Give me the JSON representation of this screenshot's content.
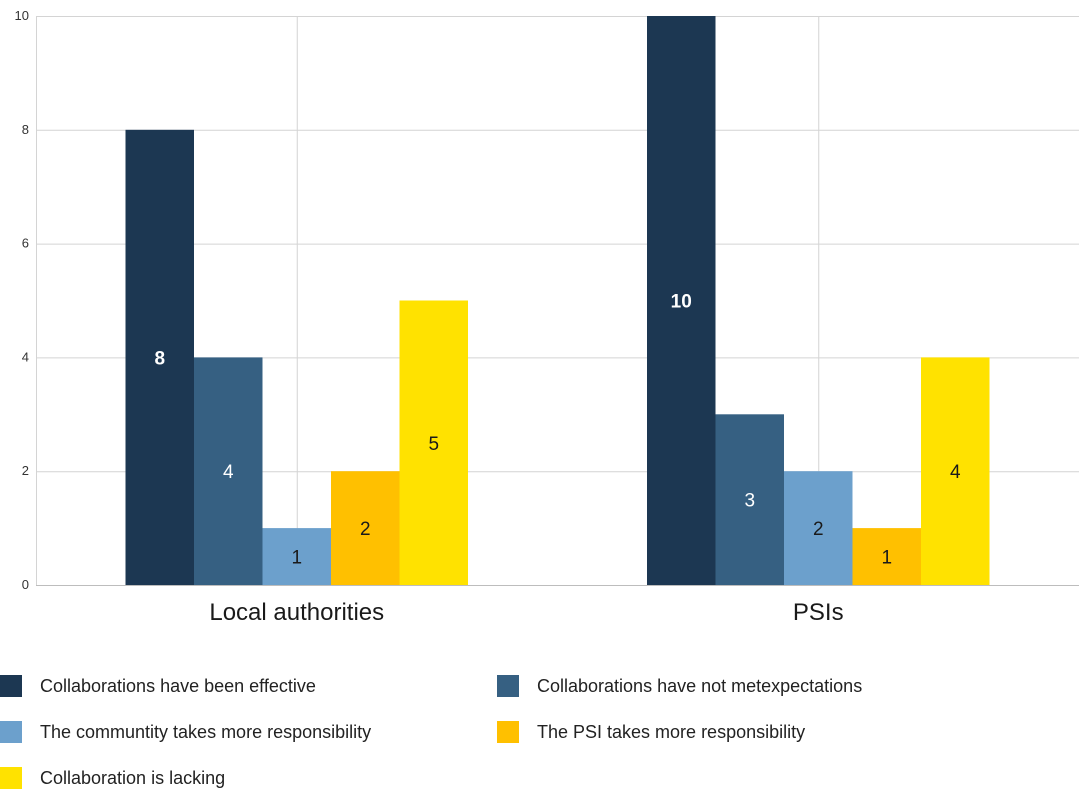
{
  "chart_data": {
    "type": "bar",
    "categories": [
      "Local authorities",
      "PSIs"
    ],
    "ylim": [
      0,
      10
    ],
    "yticks": [
      0,
      2,
      4,
      6,
      8,
      10
    ],
    "grid": true,
    "legend_position": "bottom",
    "series": [
      {
        "name": "Collaborations have been effective",
        "color": "#1c3752",
        "label_color": "#ffffff",
        "label_bold": true,
        "values": [
          8,
          10
        ]
      },
      {
        "name": "Collaborations have not metexpectations",
        "color": "#366082",
        "label_color": "#ffffff",
        "label_bold": false,
        "values": [
          4,
          3
        ]
      },
      {
        "name": "The communtity takes more responsibility",
        "color": "#6ca0cc",
        "label_color": "#1a1a1a",
        "label_bold": false,
        "values": [
          1,
          2
        ]
      },
      {
        "name": "The PSI takes more responsibility",
        "color": "#ffc000",
        "label_color": "#1a1a1a",
        "label_bold": false,
        "values": [
          2,
          1
        ]
      },
      {
        "name": "Collaboration is lacking",
        "color": "#ffe200",
        "label_color": "#1a1a1a",
        "label_bold": false,
        "values": [
          5,
          4
        ]
      }
    ]
  }
}
